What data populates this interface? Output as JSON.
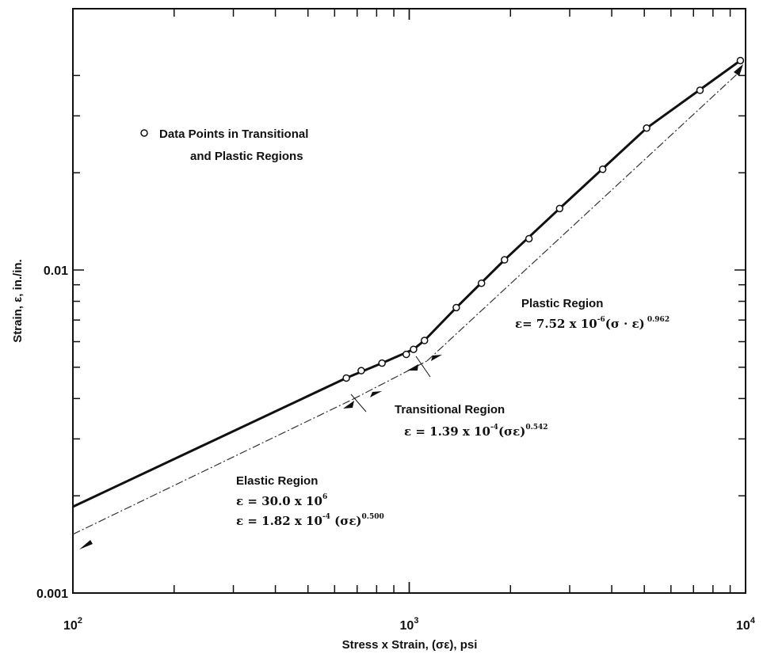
{
  "chart_data": {
    "type": "line",
    "title": "",
    "xlabel": "Stress x Strain, (σε), psi",
    "ylabel": "Strain, ε, in./in.",
    "xscale": "log",
    "yscale": "log",
    "xlim": [
      100,
      10000
    ],
    "ylim": [
      0.001,
      0.045
    ],
    "grid": false,
    "x_tick_labels": [
      {
        "value": 100,
        "base": "10",
        "exp": "2"
      },
      {
        "value": 1000,
        "base": "10",
        "exp": "3"
      },
      {
        "value": 10000,
        "base": "10",
        "exp": "4"
      }
    ],
    "y_tick_labels": [
      {
        "value": 0.001,
        "label": "0.001"
      },
      {
        "value": 0.01,
        "label": "0.01"
      }
    ],
    "legend": {
      "marker": "open-circle",
      "line1": "Data Points in Transitional",
      "line2": "and Plastic Regions",
      "placement": "top-left"
    },
    "series": [
      {
        "name": "Data Points in Transitional and Plastic Regions",
        "style": "open-circle markers",
        "points": [
          {
            "x": 650,
            "y": 0.00463
          },
          {
            "x": 720,
            "y": 0.00488
          },
          {
            "x": 830,
            "y": 0.00515
          },
          {
            "x": 980,
            "y": 0.00548
          },
          {
            "x": 1030,
            "y": 0.00568
          },
          {
            "x": 1110,
            "y": 0.00605
          },
          {
            "x": 1380,
            "y": 0.00765
          },
          {
            "x": 1640,
            "y": 0.0091
          },
          {
            "x": 1920,
            "y": 0.01075
          },
          {
            "x": 2270,
            "y": 0.0125
          },
          {
            "x": 2800,
            "y": 0.0155
          },
          {
            "x": 3760,
            "y": 0.0205
          },
          {
            "x": 5080,
            "y": 0.0275
          },
          {
            "x": 7320,
            "y": 0.036
          },
          {
            "x": 9650,
            "y": 0.0445
          }
        ]
      },
      {
        "style": "thick solid line through data",
        "points": [
          {
            "x": 100,
            "y": 0.00185
          },
          {
            "x": 650,
            "y": 0.00463
          },
          {
            "x": 830,
            "y": 0.00515
          },
          {
            "x": 1030,
            "y": 0.00568
          },
          {
            "x": 1110,
            "y": 0.00605
          },
          {
            "x": 1380,
            "y": 0.00765
          },
          {
            "x": 1920,
            "y": 0.01075
          },
          {
            "x": 2800,
            "y": 0.0155
          },
          {
            "x": 5080,
            "y": 0.0275
          },
          {
            "x": 9650,
            "y": 0.0445
          }
        ]
      },
      {
        "style": "thin fitted model curve (offset below)",
        "segments": [
          {
            "x": [
              100,
              680
            ],
            "y": [
              0.00152,
              0.00398
            ]
          },
          {
            "x": [
              680,
              1130
            ],
            "y": [
              0.00398,
              0.00523
            ]
          },
          {
            "x": [
              1130,
              9700
            ],
            "y": [
              0.00523,
              0.0415
            ]
          }
        ]
      }
    ],
    "annotations": {
      "elastic": {
        "title": "Elastic Region",
        "eq1": "ε = 30.0 x 10",
        "eq1_exp": "6",
        "eq2": "ε = 1.82 x 10",
        "eq2_exp": "-4",
        "eq2_rest": " (σε)",
        "eq2_pow": "0.500"
      },
      "transitional": {
        "title": "Transitional Region",
        "eq": "ε = 1.39 x 10",
        "eq_exp": "-4",
        "eq_rest": "(σε)",
        "eq_pow": "0.542"
      },
      "plastic": {
        "title": "Plastic Region",
        "eq": "ε= 7.52 x 10",
        "eq_exp": "-6",
        "eq_rest": "(σ · ε)",
        "eq_pow": " 0.962"
      }
    }
  }
}
